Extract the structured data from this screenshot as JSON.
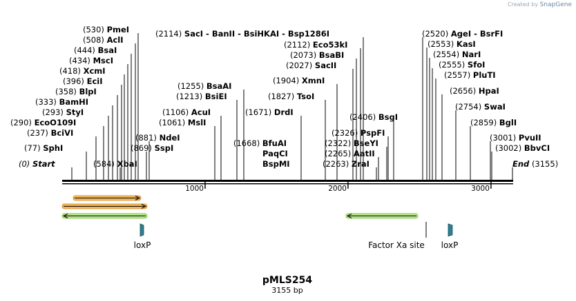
{
  "watermark": {
    "prefix": "Created by",
    "brand": "SnapGene"
  },
  "plasmid": {
    "name": "pMLS254",
    "length_text": "3155 bp",
    "length": 3155
  },
  "ruler": {
    "ticks": [
      {
        "bp": 1000,
        "label": "1000"
      },
      {
        "bp": 2000,
        "label": "2000"
      },
      {
        "bp": 3000,
        "label": "3000"
      }
    ]
  },
  "sites": [
    {
      "pos": "(530)",
      "name": "PmeI",
      "bp": 530
    },
    {
      "pos": "(508)",
      "name": "AclI",
      "bp": 508
    },
    {
      "pos": "(444)",
      "name": "BsaI",
      "bp": 444
    },
    {
      "pos": "(434)",
      "name": "MscI",
      "bp": 434
    },
    {
      "pos": "(418)",
      "name": "XcmI",
      "bp": 418
    },
    {
      "pos": "(396)",
      "name": "EciI",
      "bp": 396
    },
    {
      "pos": "(358)",
      "name": "BlpI",
      "bp": 358
    },
    {
      "pos": "(333)",
      "name": "BamHI",
      "bp": 333
    },
    {
      "pos": "(293)",
      "name": "StyI",
      "bp": 293
    },
    {
      "pos": "(290)",
      "name": "EcoO109I",
      "bp": 290
    },
    {
      "pos": "(237)",
      "name": "BciVI",
      "bp": 237
    },
    {
      "pos": "(77)",
      "name": "SphI",
      "bp": 77
    },
    {
      "pos": "(0)",
      "name": "Start",
      "bp": 0,
      "special": true
    },
    {
      "pos": "(584)",
      "name": "XbaI",
      "bp": 584
    },
    {
      "pos": "(881)",
      "name": "NdeI",
      "bp": 881
    },
    {
      "pos": "(869)",
      "name": "SspI",
      "bp": 869
    },
    {
      "pos": "(1255)",
      "name": "BsaAI",
      "bp": 1255
    },
    {
      "pos": "(1213)",
      "name": "BsiEI",
      "bp": 1213
    },
    {
      "pos": "(1106)",
      "name": "AcuI",
      "bp": 1106
    },
    {
      "pos": "(1061)",
      "name": "MslI",
      "bp": 1061
    },
    {
      "pos": "(2114)",
      "name": "SacI  -  BanII  -  BsiHKAI  -  Bsp1286I",
      "bp": 2114
    },
    {
      "pos": "(2112)",
      "name": "Eco53kI",
      "bp": 2112
    },
    {
      "pos": "(2073)",
      "name": "BsaBI",
      "bp": 2073
    },
    {
      "pos": "(2027)",
      "name": "SacII",
      "bp": 2027
    },
    {
      "pos": "(1904)",
      "name": "XmnI",
      "bp": 1904
    },
    {
      "pos": "(1827)",
      "name": "TsoI",
      "bp": 1827
    },
    {
      "pos": "(1671)",
      "name": "DrdI",
      "bp": 1671
    },
    {
      "pos": "(1668)",
      "name": "BfuAI",
      "bp": 1668
    },
    {
      "pos": "",
      "name": "PaqCI",
      "bp": 1668
    },
    {
      "pos": "",
      "name": "BspMI",
      "bp": 1668
    },
    {
      "pos": "(2406)",
      "name": "BsgI",
      "bp": 2406
    },
    {
      "pos": "(2326)",
      "name": "PspFI",
      "bp": 2326
    },
    {
      "pos": "(2322)",
      "name": "BseYI",
      "bp": 2322
    },
    {
      "pos": "(2265)",
      "name": "AatII",
      "bp": 2265
    },
    {
      "pos": "(2263)",
      "name": "ZraI",
      "bp": 2263
    },
    {
      "pos": "(2520)",
      "name": "AgeI  -  BsrFI",
      "bp": 2520
    },
    {
      "pos": "(2553)",
      "name": "KasI",
      "bp": 2553
    },
    {
      "pos": "(2554)",
      "name": "NarI",
      "bp": 2554
    },
    {
      "pos": "(2555)",
      "name": "SfoI",
      "bp": 2555
    },
    {
      "pos": "(2557)",
      "name": "PluTI",
      "bp": 2557
    },
    {
      "pos": "(2656)",
      "name": "HpaI",
      "bp": 2656
    },
    {
      "pos": "(2754)",
      "name": "SwaI",
      "bp": 2754
    },
    {
      "pos": "(2859)",
      "name": "BglI",
      "bp": 2859
    },
    {
      "pos": "(3001)",
      "name": "PvuII",
      "bp": 3001
    },
    {
      "pos": "(3002)",
      "name": "BbvCI",
      "bp": 3002
    },
    {
      "pos": "(3155)",
      "name": "End",
      "bp": 3155,
      "special": true
    }
  ],
  "features": [
    {
      "label": "loxP",
      "type": "site",
      "bp": 548
    },
    {
      "label": "Factor Xa site",
      "type": "site",
      "bp": 2520
    },
    {
      "label": "loxP",
      "type": "site",
      "bp": 2682
    }
  ],
  "colors": {
    "ruler": "#000000",
    "orange_arrow": "#f3b760",
    "green_arrow": "#b7e78a",
    "loxp": "#2f7f8f"
  }
}
